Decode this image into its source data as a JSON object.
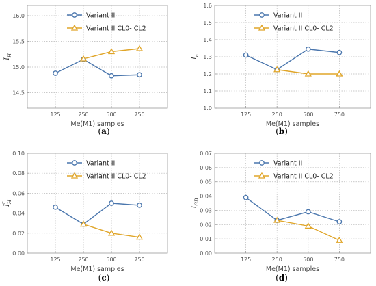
{
  "colors": {
    "series1": "#4a76ad",
    "series2": "#e0a528",
    "grid": "#b8b8b8",
    "frame": "#9a9a9a"
  },
  "chart_data": [
    {
      "type": "line",
      "caption_open": "(",
      "caption_letter": "a",
      "caption_close": ")",
      "ylabel_main": "I",
      "ylabel_sub": "H",
      "ylabel_sup": "",
      "xlabel": "Me(M1) samples",
      "categories": [
        "125",
        "250",
        "500",
        "750"
      ],
      "ylim": [
        14.2,
        16.2
      ],
      "yticks": [
        14.5,
        15.0,
        15.5,
        16.0
      ],
      "ytick_labels": [
        "14.5",
        "15.0",
        "15.5",
        "16.0"
      ],
      "grid": true,
      "legend_position": "top-left",
      "series": [
        {
          "name": "Variant II",
          "marker": "circle",
          "x": [
            "125",
            "250",
            "500",
            "750"
          ],
          "values": [
            14.88,
            15.15,
            14.83,
            14.85
          ]
        },
        {
          "name": "Variant II CL0- CL2",
          "marker": "triangle",
          "x": [
            "250",
            "500",
            "750"
          ],
          "values": [
            15.16,
            15.3,
            15.36
          ]
        }
      ]
    },
    {
      "type": "line",
      "caption_open": "(",
      "caption_letter": "b",
      "caption_close": ")",
      "ylabel_main": "I",
      "ylabel_sub": "c",
      "ylabel_sup": "",
      "xlabel": "Me(M1) samples",
      "categories": [
        "125",
        "250",
        "500",
        "750"
      ],
      "ylim": [
        1.0,
        1.6
      ],
      "yticks": [
        1.0,
        1.1,
        1.2,
        1.3,
        1.4,
        1.5,
        1.6
      ],
      "ytick_labels": [
        "1.0",
        "1.1",
        "1.2",
        "1.3",
        "1.4",
        "1.5",
        "1.6"
      ],
      "grid": true,
      "legend_position": "top-left",
      "series": [
        {
          "name": "Variant II",
          "marker": "circle",
          "x": [
            "125",
            "250",
            "500",
            "750"
          ],
          "values": [
            1.31,
            1.225,
            1.345,
            1.325
          ]
        },
        {
          "name": "Variant II CL0- CL2",
          "marker": "triangle",
          "x": [
            "250",
            "500",
            "750"
          ],
          "values": [
            1.225,
            1.2,
            1.2
          ]
        }
      ]
    },
    {
      "type": "line",
      "caption_open": "(",
      "caption_letter": "c",
      "caption_close": ")",
      "ylabel_main": "I",
      "ylabel_sub": "H",
      "ylabel_sup": "r",
      "xlabel": "Me(M1) samples",
      "categories": [
        "125",
        "250",
        "500",
        "750"
      ],
      "ylim": [
        0.0,
        0.1
      ],
      "yticks": [
        0.0,
        0.02,
        0.04,
        0.06,
        0.08,
        0.1
      ],
      "ytick_labels": [
        "0.00",
        "0.02",
        "0.04",
        "0.06",
        "0.08",
        "0.10"
      ],
      "grid": true,
      "legend_position": "top-left",
      "series": [
        {
          "name": "Variant II",
          "marker": "circle",
          "x": [
            "125",
            "250",
            "500",
            "750"
          ],
          "values": [
            0.046,
            0.029,
            0.05,
            0.048
          ]
        },
        {
          "name": "Variant II CL0- CL2",
          "marker": "triangle",
          "x": [
            "250",
            "500",
            "750"
          ],
          "values": [
            0.029,
            0.02,
            0.016
          ]
        }
      ]
    },
    {
      "type": "line",
      "caption_open": "(",
      "caption_letter": "d",
      "caption_close": ")",
      "ylabel_main": "I",
      "ylabel_sub": "GD",
      "ylabel_sup": "",
      "xlabel": "Me(M1) samples",
      "categories": [
        "125",
        "250",
        "500",
        "750"
      ],
      "ylim": [
        0.0,
        0.07
      ],
      "yticks": [
        0.0,
        0.01,
        0.02,
        0.03,
        0.04,
        0.05,
        0.06,
        0.07
      ],
      "ytick_labels": [
        "0.00",
        "0.01",
        "0.02",
        "0.03",
        "0.04",
        "0.05",
        "0.06",
        "0.07"
      ],
      "grid": true,
      "legend_position": "top-left",
      "series": [
        {
          "name": "Variant II",
          "marker": "circle",
          "x": [
            "125",
            "250",
            "500",
            "750"
          ],
          "values": [
            0.039,
            0.023,
            0.029,
            0.022
          ]
        },
        {
          "name": "Variant II CL0- CL2",
          "marker": "triangle",
          "x": [
            "250",
            "500",
            "750"
          ],
          "values": [
            0.023,
            0.019,
            0.009
          ]
        }
      ]
    }
  ]
}
